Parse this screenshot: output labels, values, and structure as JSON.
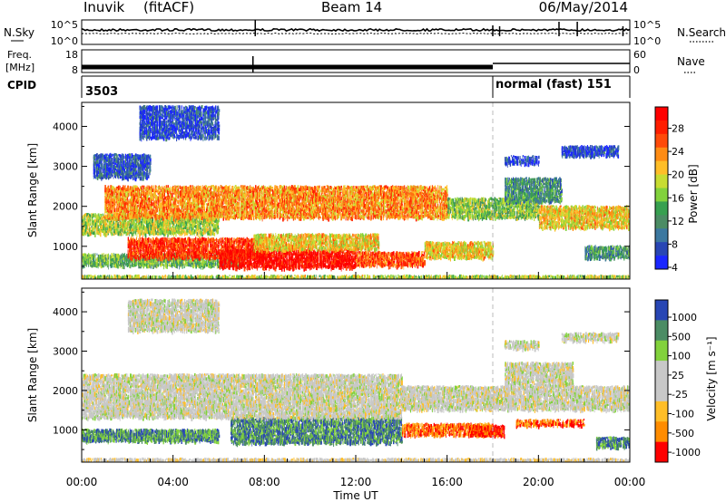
{
  "header": {
    "station": "Inuvik",
    "mode": "(fitACF)",
    "beam": "Beam 14",
    "date": "06/May/2014"
  },
  "chart_data": [
    {
      "type": "line",
      "id": "nsky-nsearch",
      "left_label": "N.Sky",
      "right_label": "N.Search",
      "left_ticks": [
        "10^5",
        "10^0"
      ],
      "right_ticks": [
        "10^5",
        "10^0"
      ]
    },
    {
      "type": "line",
      "id": "freq-nave",
      "left_label_top": "Freq.",
      "left_label_unit": "[MHz]",
      "right_label": "Nave",
      "left_ticks": [
        18,
        8
      ],
      "right_ticks": [
        60,
        0
      ],
      "series": [
        {
          "name": "Freq.",
          "x": [
            0,
            7.5,
            18,
            24
          ],
          "y": [
            10.6,
            10.6,
            10.4,
            10.4
          ]
        },
        {
          "name": "Nave",
          "x": [
            0,
            18,
            24
          ],
          "y": [
            22,
            22,
            24
          ]
        }
      ]
    },
    {
      "type": "table",
      "id": "cpid",
      "label": "CPID",
      "segments": [
        {
          "start": 0,
          "end": 18,
          "text": "3503"
        },
        {
          "start": 18,
          "end": 24,
          "text": "normal (fast) 151"
        }
      ]
    },
    {
      "type": "heatmap",
      "id": "power",
      "ylabel": "Slant Range [km]",
      "ylim": [
        180,
        4600
      ],
      "yticks": [
        1000,
        2000,
        3000,
        4000
      ],
      "colorbar_label": "Power [dB]",
      "colorbar_ticks": [
        "28",
        "24",
        "20",
        "16",
        "12",
        "8",
        "4"
      ],
      "colors": [
        "#1a26ff",
        "#2846b4",
        "#3c78a0",
        "#4b8c64",
        "#37a050",
        "#82d23c",
        "#c8dc32",
        "#ffbe28",
        "#ff8c14",
        "#ff4b0a",
        "#ff1e00",
        "#ff0000"
      ],
      "bands": [
        {
          "x0": 0,
          "x1": 24,
          "r0": 180,
          "r1": 260,
          "level": 0.5
        },
        {
          "x0": 0,
          "x1": 7,
          "r0": 500,
          "r1": 800,
          "level": 0.4
        },
        {
          "x0": 2,
          "x1": 8,
          "r0": 700,
          "r1": 1200,
          "level": 0.85
        },
        {
          "x0": 6,
          "x1": 12,
          "r0": 450,
          "r1": 900,
          "level": 0.95
        },
        {
          "x0": 12,
          "x1": 15,
          "r0": 500,
          "r1": 850,
          "level": 0.8
        },
        {
          "x0": 7.5,
          "x1": 13,
          "r0": 900,
          "r1": 1300,
          "level": 0.6
        },
        {
          "x0": 15,
          "x1": 18,
          "r0": 700,
          "r1": 1100,
          "level": 0.6
        },
        {
          "x0": 0,
          "x1": 6,
          "r0": 1300,
          "r1": 1800,
          "level": 0.5
        },
        {
          "x0": 1,
          "x1": 16,
          "r0": 1700,
          "r1": 2500,
          "level": 0.7
        },
        {
          "x0": 16,
          "x1": 20,
          "r0": 1700,
          "r1": 2200,
          "level": 0.45
        },
        {
          "x0": 18.5,
          "x1": 21,
          "r0": 2100,
          "r1": 2700,
          "level": 0.3
        },
        {
          "x0": 20,
          "x1": 24,
          "r0": 1450,
          "r1": 2000,
          "level": 0.6
        },
        {
          "x0": 0.5,
          "x1": 3,
          "r0": 2700,
          "r1": 3300,
          "level": 0.15
        },
        {
          "x0": 2.5,
          "x1": 6,
          "r0": 3700,
          "r1": 4500,
          "level": 0.12
        },
        {
          "x0": 21,
          "x1": 23.5,
          "r0": 3250,
          "r1": 3500,
          "level": 0.1
        },
        {
          "x0": 18.5,
          "x1": 20,
          "r0": 3050,
          "r1": 3250,
          "level": 0.1
        },
        {
          "x0": 22,
          "x1": 24,
          "r0": 700,
          "r1": 1000,
          "level": 0.3
        }
      ]
    },
    {
      "type": "heatmap",
      "id": "velocity",
      "ylabel": "Slant Range [km]",
      "ylim": [
        180,
        4600
      ],
      "yticks": [
        1000,
        2000,
        3000,
        4000
      ],
      "xlabel": "Time UT",
      "xticks": [
        "00:00",
        "04:00",
        "08:00",
        "12:00",
        "16:00",
        "20:00",
        "00:00"
      ],
      "colorbar_label": "Velocity [m s⁻¹]",
      "colorbar_ticks": [
        "1000",
        "500",
        "100",
        "25",
        "-25",
        "-100",
        "-500",
        "-1000"
      ],
      "colors": [
        "#ff0000",
        "#ff8c00",
        "#ffbe28",
        "#c8c8c8",
        "#c8c8c8",
        "#82d23c",
        "#4b8c64",
        "#2846b4"
      ],
      "bands": [
        {
          "x0": 0,
          "x1": 24,
          "r0": 180,
          "r1": 260,
          "level": 0.45
        },
        {
          "x0": 0,
          "x1": 6,
          "r0": 700,
          "r1": 1000,
          "level": 0.8
        },
        {
          "x0": 6.5,
          "x1": 14,
          "r0": 650,
          "r1": 1300,
          "level": 0.82
        },
        {
          "x0": 14,
          "x1": 18,
          "r0": 850,
          "r1": 1150,
          "level": 0.15
        },
        {
          "x0": 17,
          "x1": 18.5,
          "r0": 850,
          "r1": 1100,
          "level": 0.05
        },
        {
          "x0": 19,
          "x1": 22,
          "r0": 1100,
          "r1": 1250,
          "level": 0.15
        },
        {
          "x0": 0,
          "x1": 14,
          "r0": 1300,
          "r1": 2400,
          "level": 0.5
        },
        {
          "x0": 14,
          "x1": 24,
          "r0": 1500,
          "r1": 2100,
          "level": 0.5
        },
        {
          "x0": 18.5,
          "x1": 21.5,
          "r0": 2100,
          "r1": 2700,
          "level": 0.5
        },
        {
          "x0": 2,
          "x1": 6,
          "r0": 3500,
          "r1": 4300,
          "level": 0.5
        },
        {
          "x0": 21,
          "x1": 23.5,
          "r0": 3250,
          "r1": 3450,
          "level": 0.5
        },
        {
          "x0": 18.5,
          "x1": 20,
          "r0": 3050,
          "r1": 3250,
          "level": 0.5
        },
        {
          "x0": 22.5,
          "x1": 24,
          "r0": 550,
          "r1": 800,
          "level": 0.82
        }
      ]
    }
  ]
}
